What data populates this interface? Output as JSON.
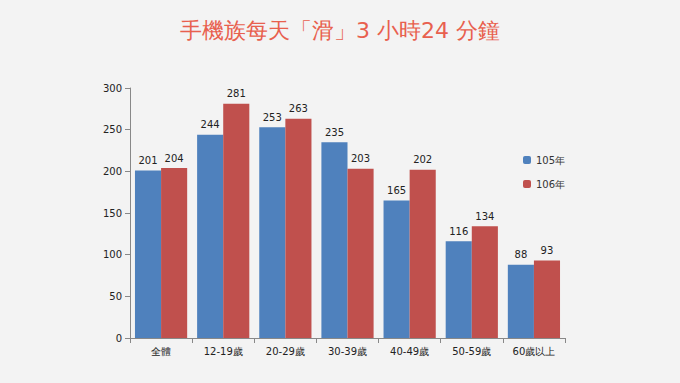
{
  "chart_data": {
    "type": "bar",
    "title": "手機族每天「滑」3 小時24 分鐘",
    "categories": [
      "全體",
      "12-19歲",
      "20-29歲",
      "30-39歲",
      "40-49歲",
      "50-59歲",
      "60歲以上"
    ],
    "series": [
      {
        "name": "105年",
        "color": "#4f81bd",
        "values": [
          201,
          244,
          253,
          235,
          165,
          116,
          88
        ]
      },
      {
        "name": "106年",
        "color": "#c0504d",
        "values": [
          204,
          281,
          263,
          203,
          202,
          134,
          93
        ]
      }
    ],
    "ylim": [
      0,
      300
    ],
    "yticks": [
      0,
      50,
      100,
      150,
      200,
      250,
      300
    ],
    "grid": false,
    "legend": "right",
    "data_labels": true
  }
}
